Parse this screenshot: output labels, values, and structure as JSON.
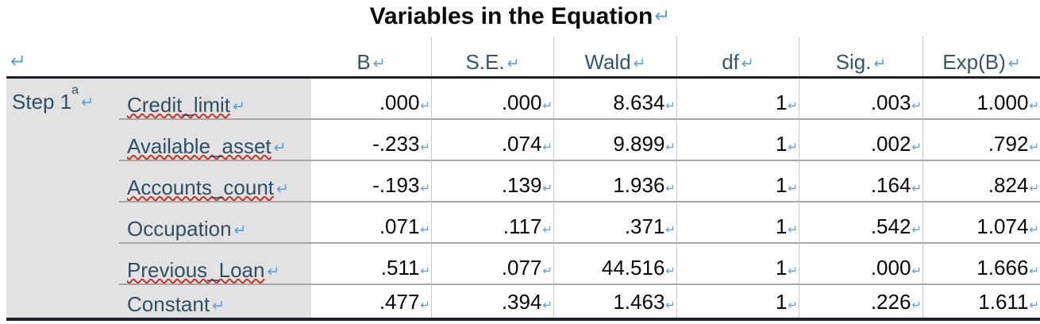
{
  "title": {
    "text": "Variables in the Equation"
  },
  "marks": {
    "paragraph_mark": "↵",
    "cell_mark": "↵"
  },
  "colors": {
    "formatting_mark_blue": "#5e9fd9",
    "header_label_slate": "#33566c",
    "row_label_slate": "#2e5064",
    "stub_background_gray": "#e2e2e2",
    "rule_black": "#1d2025",
    "row_separator_gray": "#a6a6a6",
    "column_separator_gray": "#c9c9c9",
    "spellcheck_red": "#d02f1f"
  },
  "table": {
    "headers": [
      "B",
      "S.E.",
      "Wald",
      "df",
      "Sig.",
      "Exp(B)"
    ],
    "step": {
      "text": "Step 1",
      "superscript": "a"
    },
    "rows": [
      {
        "label": "Credit_limit",
        "misspelled": true,
        "b": ".000",
        "se": ".000",
        "wald": "8.634",
        "df": "1",
        "sig": ".003",
        "exp_b": "1.000"
      },
      {
        "label": "Available_asset",
        "misspelled": true,
        "b": "-.233",
        "se": ".074",
        "wald": "9.899",
        "df": "1",
        "sig": ".002",
        "exp_b": ".792"
      },
      {
        "label": "Accounts_count",
        "misspelled": true,
        "b": "-.193",
        "se": ".139",
        "wald": "1.936",
        "df": "1",
        "sig": ".164",
        "exp_b": ".824"
      },
      {
        "label": "Occupation",
        "misspelled": false,
        "b": ".071",
        "se": ".117",
        "wald": ".371",
        "df": "1",
        "sig": ".542",
        "exp_b": "1.074"
      },
      {
        "label": "Previous_Loan",
        "misspelled": true,
        "b": ".511",
        "se": ".077",
        "wald": "44.516",
        "df": "1",
        "sig": ".000",
        "exp_b": "1.666"
      },
      {
        "label": "Constant",
        "misspelled": false,
        "b": ".477",
        "se": ".394",
        "wald": "1.463",
        "df": "1",
        "sig": ".226",
        "exp_b": "1.611"
      }
    ]
  }
}
